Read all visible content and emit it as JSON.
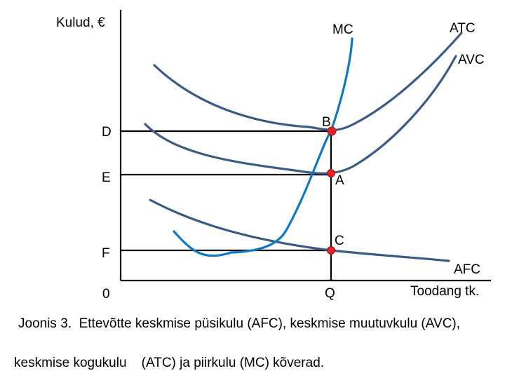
{
  "axes": {
    "y_label": "Kulud, €",
    "x_label": "Toodang tk.",
    "origin_label": "0"
  },
  "curves": {
    "mc": "MC",
    "atc": "ATC",
    "avc": "AVC",
    "afc": "AFC"
  },
  "y_levels": {
    "d": "D",
    "e": "E",
    "f": "F"
  },
  "x_levels": {
    "q": "Q"
  },
  "points": {
    "b": "B",
    "a": "A",
    "c": "C"
  },
  "caption": {
    "line1": "Joonis 3.  Ettevõtte keskmise püsikulu (AFC), keskmise muutuvkulu (AVC),",
    "line2": "keskmise kogukulu    (ATC) ja piirkulu (MC) kõverad."
  },
  "colors": {
    "cost_curves": "#3b5a86",
    "mc_curve": "#0f78c3",
    "points": "#e3212a"
  }
}
